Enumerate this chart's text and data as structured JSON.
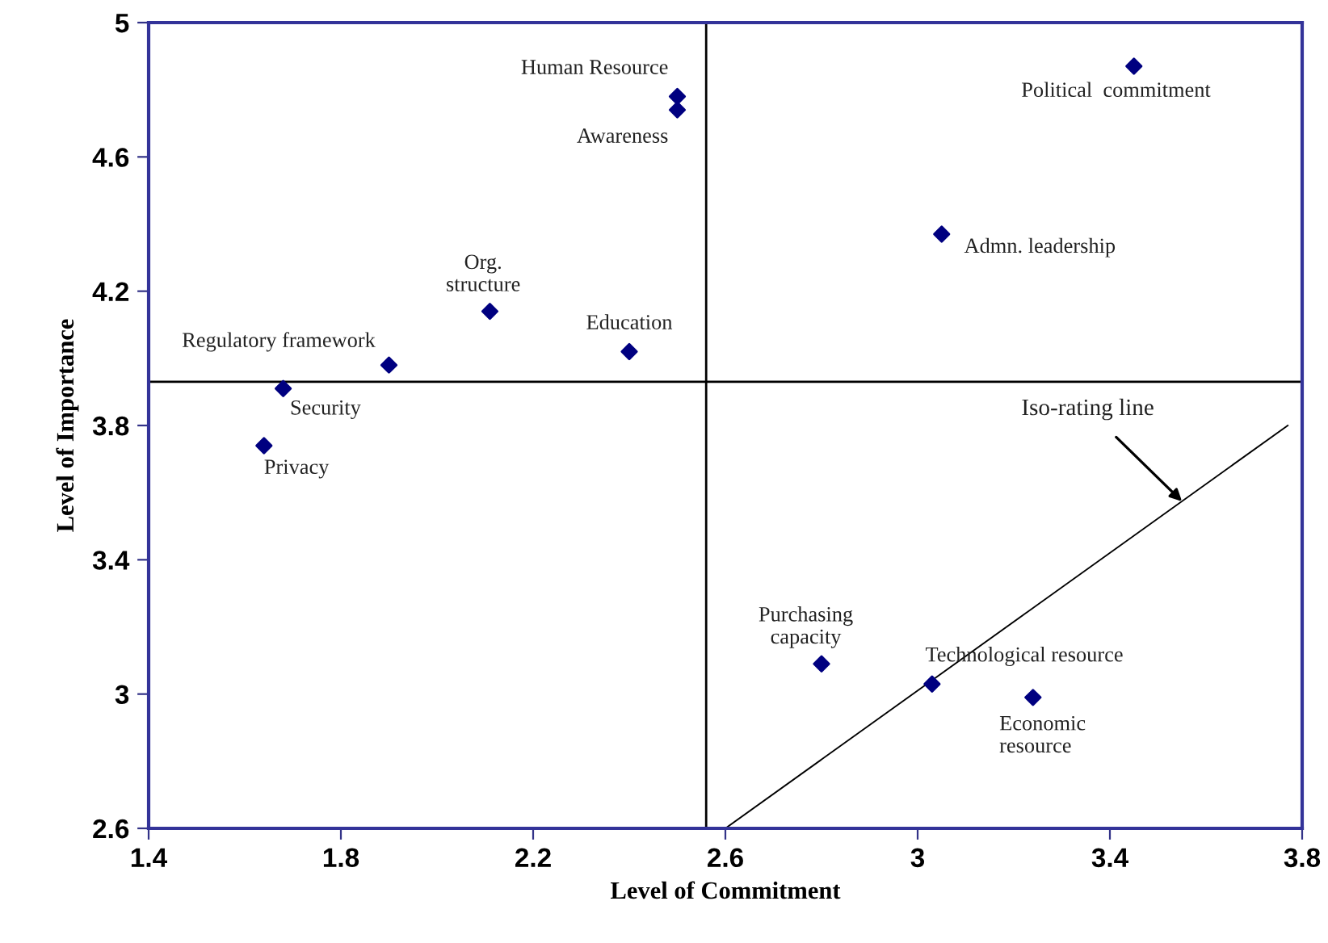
{
  "chart_data": {
    "type": "scatter",
    "xlabel": "Level of Commitment",
    "ylabel": "Level of Importance",
    "xlim": [
      1.4,
      3.8
    ],
    "ylim": [
      2.6,
      5
    ],
    "xticks": [
      1.4,
      1.8,
      2.2,
      2.6,
      3,
      3.4,
      3.8
    ],
    "yticks": [
      2.6,
      3,
      3.4,
      3.8,
      4.2,
      4.6,
      5
    ],
    "grid": false,
    "series": [
      {
        "color": "#000080",
        "marker": "diamond",
        "x": [
          2.5,
          2.5,
          2.11,
          2.4,
          1.9,
          1.68,
          1.64,
          3.45,
          3.05,
          2.8,
          3.03,
          3.24
        ],
        "values": [
          4.78,
          4.74,
          4.14,
          4.02,
          3.98,
          3.91,
          3.74,
          4.87,
          4.37,
          3.09,
          3.03,
          2.99
        ]
      },
      {
        "type": "line",
        "color": "#000000",
        "x": [
          2.6,
          3.77
        ],
        "values": [
          2.6,
          3.8
        ]
      }
    ],
    "ref_lines": [
      {
        "axis": "x",
        "value": 2.56,
        "color": "#000000"
      },
      {
        "axis": "y",
        "value": 3.93,
        "color": "#000000"
      }
    ],
    "annotations": [
      {
        "text": "Human Resource",
        "x": 2.5,
        "y": 4.78
      },
      {
        "text": "Awareness",
        "x": 2.5,
        "y": 4.74
      },
      {
        "text": "Org.\nstructure",
        "x": 2.11,
        "y": 4.14
      },
      {
        "text": "Education",
        "x": 2.4,
        "y": 4.02
      },
      {
        "text": "Regulatory framework",
        "x": 1.9,
        "y": 3.98
      },
      {
        "text": "Security",
        "x": 1.68,
        "y": 3.91
      },
      {
        "text": "Privacy",
        "x": 1.64,
        "y": 3.74
      },
      {
        "text": "Political  commitment",
        "x": 3.45,
        "y": 4.87
      },
      {
        "text": "Admn. leadership",
        "x": 3.05,
        "y": 4.37
      },
      {
        "text": "Purchasing\ncapacity",
        "x": 2.8,
        "y": 3.09
      },
      {
        "text": "Technological resource",
        "x": 3.03,
        "y": 3.03
      },
      {
        "text": "Economic\nresource",
        "x": 3.24,
        "y": 2.99
      },
      {
        "text": "Iso-rating line",
        "x": 3.55,
        "y": 3.574
      }
    ]
  }
}
